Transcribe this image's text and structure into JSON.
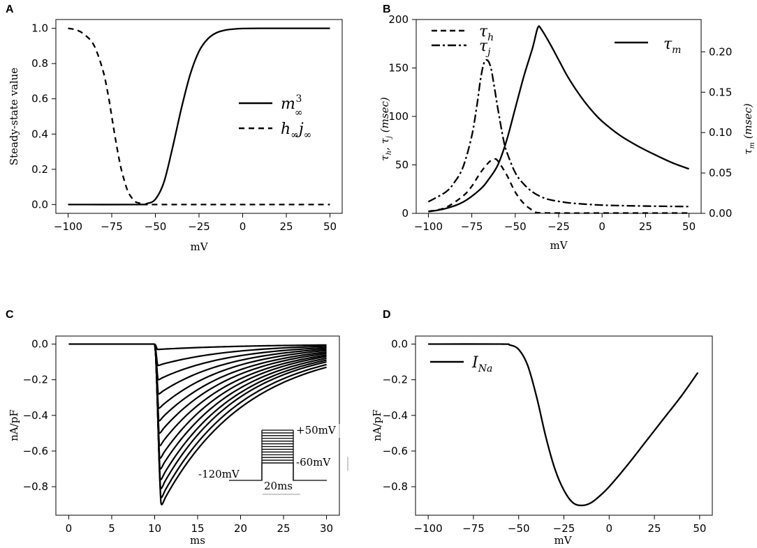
{
  "chart_data": [
    {
      "panel": "A",
      "type": "line",
      "xlabel": "mV",
      "ylabel": "Steady-state value",
      "xlim": [
        -107,
        57
      ],
      "ylim": [
        -0.05,
        1.05
      ],
      "xticks": [
        -100,
        -75,
        -50,
        -25,
        0,
        25,
        50
      ],
      "yticks": [
        0.0,
        0.2,
        0.4,
        0.6,
        0.8,
        1.0
      ],
      "xtick_labels": [
        "−100",
        "−75",
        "−50",
        "−25",
        "0",
        "25",
        "50"
      ],
      "ytick_labels": [
        "0.0",
        "0.2",
        "0.4",
        "0.6",
        "0.8",
        "1.0"
      ],
      "legend_position": "right",
      "series": [
        {
          "name": "m∞³",
          "style": "solid",
          "x": [
            -100,
            -60,
            -55,
            -50,
            -45,
            -40,
            -35,
            -30,
            -25,
            -20,
            -15,
            -10,
            -5,
            0,
            10,
            20,
            50
          ],
          "y": [
            0.0,
            0.0,
            0.005,
            0.03,
            0.13,
            0.33,
            0.55,
            0.74,
            0.87,
            0.94,
            0.975,
            0.99,
            0.996,
            0.999,
            1.0,
            1.0,
            1.0
          ]
        },
        {
          "name": "h∞j∞",
          "style": "dashed",
          "x": [
            -100,
            -95,
            -90,
            -85,
            -80,
            -77,
            -75,
            -73,
            -70,
            -67,
            -65,
            -62,
            -60,
            -57,
            -55,
            -50,
            0,
            50
          ],
          "y": [
            1.0,
            0.99,
            0.96,
            0.9,
            0.76,
            0.62,
            0.5,
            0.38,
            0.22,
            0.11,
            0.06,
            0.02,
            0.01,
            0.003,
            0.0,
            0.0,
            0.0,
            0.0
          ]
        }
      ]
    },
    {
      "panel": "B",
      "type": "line",
      "xlabel": "mV",
      "ylabel_left": "τh, τj (msec)",
      "ylabel_right": "τm (msec)",
      "xlim": [
        -107,
        57
      ],
      "ylim": [
        0,
        200
      ],
      "ylim_right": [
        0,
        0.24
      ],
      "xticks": [
        -100,
        -75,
        -50,
        -25,
        0,
        25,
        50
      ],
      "xtick_labels": [
        "−100",
        "−75",
        "−50",
        "−25",
        "0",
        "25",
        "50"
      ],
      "yticks": [
        0,
        50,
        100,
        150,
        200
      ],
      "ytick_labels": [
        "0",
        "50",
        "100",
        "150",
        "200"
      ],
      "yticks_right": [
        0.0,
        0.05,
        0.1,
        0.15,
        0.2
      ],
      "ytick_labels_right": [
        "0.00",
        "0.05",
        "0.10",
        "0.15",
        "0.20"
      ],
      "legend_position": "top-left and top-right",
      "series": [
        {
          "name": "τh",
          "label": "τ",
          "sub": "h",
          "style": "dashed",
          "axis": "left",
          "x": [
            -100,
            -90,
            -80,
            -75,
            -70,
            -65,
            -62,
            -60,
            -55,
            -50,
            -45,
            -40,
            -38,
            -35,
            -20,
            0,
            50
          ],
          "y": [
            2,
            6,
            18,
            28,
            42,
            53,
            56,
            54,
            40,
            22,
            10,
            3,
            1,
            0.5,
            0.3,
            0.3,
            0.3
          ]
        },
        {
          "name": "τj",
          "label": "τ",
          "sub": "j",
          "style": "dashdot",
          "axis": "left",
          "x": [
            -100,
            -90,
            -85,
            -80,
            -75,
            -72,
            -70,
            -68,
            -66,
            -64,
            -62,
            -60,
            -57,
            -55,
            -50,
            -45,
            -40,
            -35,
            -30,
            -20,
            -10,
            0,
            10,
            25,
            50
          ],
          "y": [
            12,
            22,
            32,
            48,
            80,
            112,
            138,
            155,
            158,
            150,
            130,
            108,
            78,
            64,
            42,
            30,
            22,
            17,
            14,
            11,
            9.5,
            8.5,
            8,
            7.5,
            7
          ]
        },
        {
          "name": "τm",
          "label": "τ",
          "sub": "m",
          "style": "solid",
          "axis": "right",
          "x": [
            -100,
            -90,
            -80,
            -70,
            -65,
            -60,
            -55,
            -50,
            -45,
            -40,
            -37,
            -35,
            -30,
            -25,
            -20,
            -15,
            -10,
            -5,
            0,
            10,
            20,
            30,
            40,
            50
          ],
          "y": [
            0.002,
            0.006,
            0.014,
            0.03,
            0.043,
            0.06,
            0.09,
            0.13,
            0.17,
            0.205,
            0.23,
            0.228,
            0.21,
            0.19,
            0.17,
            0.153,
            0.138,
            0.125,
            0.114,
            0.097,
            0.084,
            0.073,
            0.063,
            0.055
          ]
        }
      ]
    },
    {
      "panel": "C",
      "type": "line",
      "xlabel": "ms",
      "ylabel": "nA/pF",
      "xlim": [
        -1.5,
        31.5
      ],
      "ylim": [
        -0.96,
        0.045
      ],
      "xticks": [
        0,
        5,
        10,
        15,
        20,
        25,
        30
      ],
      "xtick_labels": [
        "0",
        "5",
        "10",
        "15",
        "20",
        "25",
        "30"
      ],
      "yticks": [
        0.0,
        -0.2,
        -0.4,
        -0.6,
        -0.8
      ],
      "ytick_labels": [
        "0.0",
        "−0.2",
        "−0.4",
        "−0.6",
        "−0.8"
      ],
      "step_onset_ms": 10,
      "family_peaks": [
        -0.03,
        -0.12,
        -0.2,
        -0.28,
        -0.36,
        -0.43,
        -0.5,
        -0.57,
        -0.64,
        -0.7,
        -0.76,
        -0.81,
        -0.86,
        -0.9
      ],
      "family_end_values": [
        -0.005,
        -0.012,
        -0.02,
        -0.028,
        -0.036,
        -0.045,
        -0.053,
        -0.062,
        -0.07,
        -0.08,
        -0.09,
        -0.1,
        -0.115,
        -0.13
      ],
      "inset": {
        "labels": [
          "+50mV",
          "-60mV",
          "-120mV",
          "20ms"
        ]
      }
    },
    {
      "panel": "D",
      "type": "line",
      "xlabel": "mV",
      "ylabel": "nA/pF",
      "xlim": [
        -107,
        57
      ],
      "ylim": [
        -0.96,
        0.045
      ],
      "xticks": [
        -100,
        -75,
        -50,
        -25,
        0,
        25,
        50
      ],
      "xtick_labels": [
        "−100",
        "−75",
        "−50",
        "−25",
        "0",
        "25",
        "50"
      ],
      "yticks": [
        0.0,
        -0.2,
        -0.4,
        -0.6,
        -0.8
      ],
      "ytick_labels": [
        "0.0",
        "−0.2",
        "−0.4",
        "−0.6",
        "−0.8"
      ],
      "legend_position": "top-left",
      "series": [
        {
          "name": "INa",
          "label": "I",
          "sub": "Na",
          "style": "solid",
          "x": [
            -100,
            -60,
            -55,
            -50,
            -45,
            -40,
            -35,
            -30,
            -25,
            -20,
            -15,
            -10,
            -5,
            0,
            10,
            20,
            30,
            40,
            49
          ],
          "y": [
            0.0,
            0.0,
            -0.005,
            -0.03,
            -0.12,
            -0.3,
            -0.52,
            -0.7,
            -0.82,
            -0.89,
            -0.905,
            -0.89,
            -0.85,
            -0.8,
            -0.68,
            -0.55,
            -0.42,
            -0.29,
            -0.16
          ]
        }
      ]
    }
  ]
}
